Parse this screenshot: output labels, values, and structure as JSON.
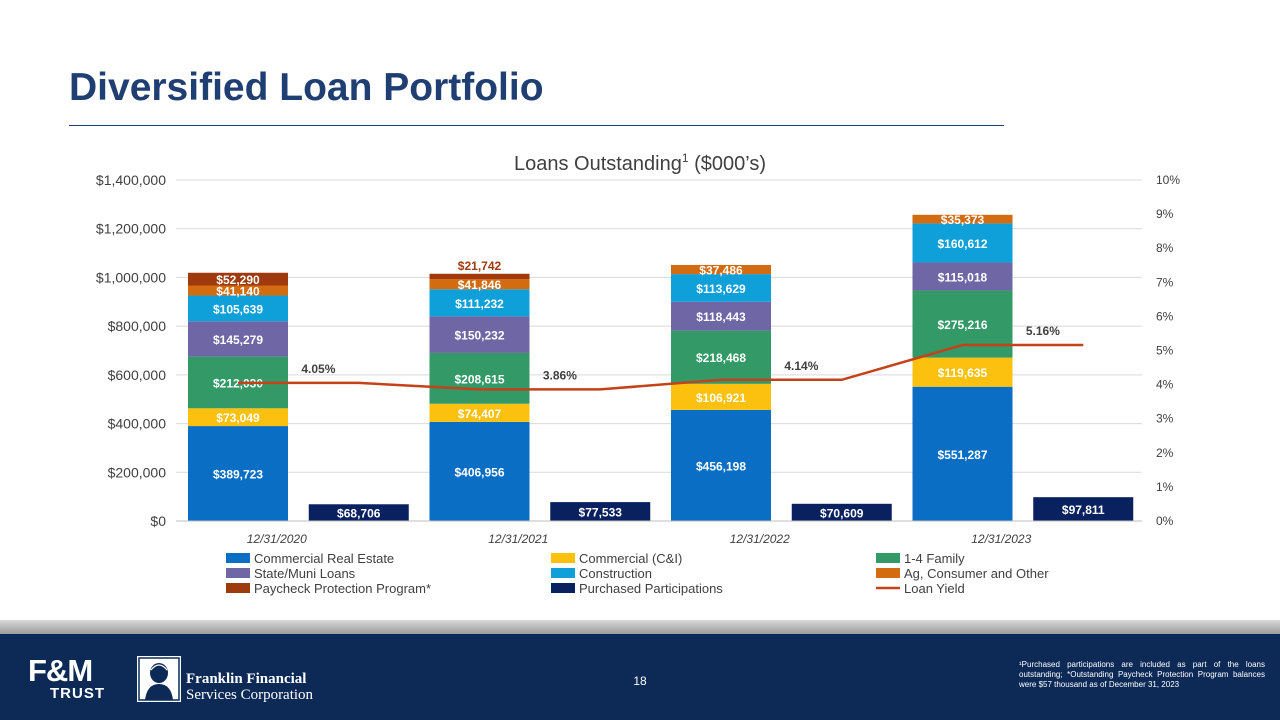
{
  "slide": {
    "title": "Diversified Loan Portfolio",
    "page_number": "18",
    "footnote": "¹Purchased participations are included as part of the loans outstanding; *Outstanding Paycheck Protection Program balances were $57 thousand as of December 31, 2023",
    "logo_left_top": "F&M",
    "logo_left_bottom": "TRUST",
    "logo_right_line1": "Franklin Financial",
    "logo_right_line2": "Services Corporation"
  },
  "colors": {
    "title": "#1f3f73",
    "footer": "#0d2a57",
    "cre": "#0b6ec5",
    "cni": "#fcc10f",
    "family": "#339966",
    "muni": "#6f67a5",
    "construction": "#0f9fd9",
    "ag": "#d36b10",
    "ppp": "#9e3a0e",
    "purchased": "#0a2160",
    "yield": "#c4421a"
  },
  "chart_data": {
    "type": "bar",
    "title": "Loans Outstanding",
    "title_sup": "1",
    "title_suffix": " ($000’s)",
    "categories": [
      "12/31/2020",
      "12/31/2021",
      "12/31/2022",
      "12/31/2023"
    ],
    "ylim": [
      0,
      1400000
    ],
    "yticks": [
      "$0",
      "$200,000",
      "$400,000",
      "$600,000",
      "$800,000",
      "$1,000,000",
      "$1,200,000",
      "$1,400,000"
    ],
    "y2lim": [
      0,
      10
    ],
    "y2ticks": [
      "0%",
      "1%",
      "2%",
      "3%",
      "4%",
      "5%",
      "6%",
      "7%",
      "8%",
      "9%",
      "10%"
    ],
    "stacked_series": [
      {
        "name": "Commercial Real Estate",
        "color_key": "cre",
        "values": [
          389723,
          406956,
          456198,
          551287
        ],
        "labels": [
          "$389,723",
          "$406,956",
          "$456,198",
          "$551,287"
        ]
      },
      {
        "name": "Commercial (C&I)",
        "color_key": "cni",
        "values": [
          73049,
          74407,
          106921,
          119635
        ],
        "labels": [
          "$73,049",
          "$74,407",
          "$106,921",
          "$119,635"
        ]
      },
      {
        "name": "1-4 Family",
        "color_key": "family",
        "values": [
          212030,
          208615,
          218468,
          275216
        ],
        "labels": [
          "$212,030",
          "$208,615",
          "$218,468",
          "$275,216"
        ]
      },
      {
        "name": "State/Muni Loans",
        "color_key": "muni",
        "values": [
          145279,
          150232,
          118443,
          115018
        ],
        "labels": [
          "$145,279",
          "$150,232",
          "$118,443",
          "$115,018"
        ]
      },
      {
        "name": "Construction",
        "color_key": "construction",
        "values": [
          105639,
          111232,
          113629,
          160612
        ],
        "labels": [
          "$105,639",
          "$111,232",
          "$113,629",
          "$160,612"
        ]
      },
      {
        "name": "Ag, Consumer and Other",
        "color_key": "ag",
        "values": [
          41140,
          41846,
          37486,
          35373
        ],
        "labels": [
          "$41,140",
          "$41,846",
          "$37,486",
          "$35,373"
        ]
      },
      {
        "name": "Paycheck Protection Program*",
        "color_key": "ppp",
        "values": [
          52290,
          21742,
          0,
          0
        ],
        "labels": [
          "$52,290",
          "$21,742",
          "",
          ""
        ]
      }
    ],
    "purchased_series": {
      "name": "Purchased Participations",
      "color_key": "purchased",
      "values": [
        68706,
        77533,
        70609,
        97811
      ],
      "labels": [
        "$68,706",
        "$77,533",
        "$70,609",
        "$97,811"
      ]
    },
    "line_series": {
      "name": "Loan Yield",
      "color_key": "yield",
      "values": [
        4.05,
        3.86,
        4.14,
        5.16
      ],
      "labels": [
        "4.05%",
        "3.86%",
        "4.14%",
        "5.16%"
      ]
    },
    "legend": [
      {
        "name": "Commercial Real Estate",
        "color_key": "cre",
        "kind": "box"
      },
      {
        "name": "Commercial (C&I)",
        "color_key": "cni",
        "kind": "box"
      },
      {
        "name": "1-4 Family",
        "color_key": "family",
        "kind": "box"
      },
      {
        "name": "State/Muni Loans",
        "color_key": "muni",
        "kind": "box"
      },
      {
        "name": "Construction",
        "color_key": "construction",
        "kind": "box"
      },
      {
        "name": "Ag, Consumer and Other",
        "color_key": "ag",
        "kind": "box"
      },
      {
        "name": "Paycheck Protection Program*",
        "color_key": "ppp",
        "kind": "box"
      },
      {
        "name": "Purchased Participations",
        "color_key": "purchased",
        "kind": "box"
      },
      {
        "name": "Loan Yield",
        "color_key": "yield",
        "kind": "line"
      }
    ],
    "legend_position": "bottom",
    "grid": true
  }
}
